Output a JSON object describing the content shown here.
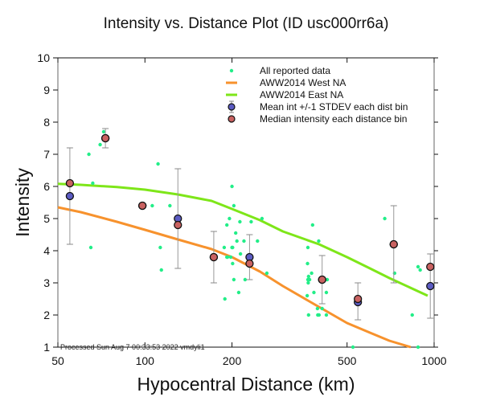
{
  "chart_data": {
    "type": "scatter",
    "title": "Intensity vs. Distance Plot (ID usc000rr6a)",
    "xlabel": "Hypocentral Distance (km)",
    "ylabel": "Intensity",
    "xscale": "log",
    "xlim": [
      50,
      1000
    ],
    "ylim": [
      1,
      10
    ],
    "xticks": [
      50,
      100,
      200,
      500,
      1000
    ],
    "xtick_labels": [
      "50",
      "100",
      "200",
      "500",
      "1000"
    ],
    "yticks": [
      1,
      2,
      3,
      4,
      5,
      6,
      7,
      8,
      9,
      10
    ],
    "ytick_labels": [
      "1",
      "2",
      "3",
      "4",
      "5",
      "6",
      "7",
      "8",
      "9",
      "10"
    ],
    "grid": false,
    "legend_position": "top-right",
    "annotation": "Processed Sun Aug  7 00:33:53 2022 vmdyli1",
    "legend": [
      {
        "label": "All reported data",
        "kind": "dot",
        "color": "#22ee88"
      },
      {
        "label": "AWW2014 West NA",
        "kind": "line",
        "color": "#f7922d"
      },
      {
        "label": "AWW2014 East NA",
        "kind": "line",
        "color": "#7ee619"
      },
      {
        "label": "Mean int +/-1 STDEV each dist bin",
        "kind": "circle-errbar",
        "color": "#5b5bc2"
      },
      {
        "label": "Median intensity each distance bin",
        "kind": "circle",
        "color": "#c96261"
      }
    ],
    "series": [
      {
        "name": "All reported data",
        "color": "#22ee88",
        "points": [
          [
            64,
            7.0
          ],
          [
            70,
            7.3
          ],
          [
            72,
            7.7
          ],
          [
            66,
            6.1
          ],
          [
            65,
            4.1
          ],
          [
            111,
            6.7
          ],
          [
            106,
            5.4
          ],
          [
            122,
            5.4
          ],
          [
            113,
            4.1
          ],
          [
            114,
            3.4
          ],
          [
            200,
            6.0
          ],
          [
            203,
            5.4
          ],
          [
            196,
            5.0
          ],
          [
            192,
            4.8
          ],
          [
            213,
            4.9
          ],
          [
            206,
            4.55
          ],
          [
            208,
            4.3
          ],
          [
            220,
            4.3
          ],
          [
            188,
            4.1
          ],
          [
            200,
            4.1
          ],
          [
            201,
            4.1
          ],
          [
            214,
            3.9
          ],
          [
            192,
            3.8
          ],
          [
            193,
            3.8
          ],
          [
            198,
            3.8
          ],
          [
            201,
            3.6
          ],
          [
            203,
            3.1
          ],
          [
            222,
            3.1
          ],
          [
            211,
            2.7
          ],
          [
            189,
            2.5
          ],
          [
            233,
            4.9
          ],
          [
            245,
            4.3
          ],
          [
            254,
            5.0
          ],
          [
            264,
            3.3
          ],
          [
            380,
            4.8
          ],
          [
            399,
            4.3
          ],
          [
            366,
            4.1
          ],
          [
            365,
            3.6
          ],
          [
            377,
            3.3
          ],
          [
            368,
            3.2
          ],
          [
            366,
            3.1
          ],
          [
            371,
            3.1
          ],
          [
            367,
            3.0
          ],
          [
            408,
            3.1
          ],
          [
            427,
            3.1
          ],
          [
            384,
            2.7
          ],
          [
            364,
            2.6
          ],
          [
            424,
            2.7
          ],
          [
            395,
            2.2
          ],
          [
            410,
            2.2
          ],
          [
            396,
            2.0
          ],
          [
            400,
            2.0
          ],
          [
            368,
            2.0
          ],
          [
            424,
            2.0
          ],
          [
            524,
            1.0
          ],
          [
            675,
            5.0
          ],
          [
            730,
            3.3
          ],
          [
            880,
            3.5
          ],
          [
            895,
            3.4
          ],
          [
            840,
            2.0
          ],
          [
            880,
            1.0
          ]
        ]
      },
      {
        "name": "AWW2014 West NA",
        "color": "#f7922d",
        "points": [
          [
            50,
            5.35
          ],
          [
            60,
            5.2
          ],
          [
            80,
            4.9
          ],
          [
            100,
            4.65
          ],
          [
            130,
            4.35
          ],
          [
            170,
            4.05
          ],
          [
            200,
            3.8
          ],
          [
            250,
            3.35
          ],
          [
            300,
            2.9
          ],
          [
            400,
            2.25
          ],
          [
            500,
            1.75
          ],
          [
            600,
            1.45
          ],
          [
            700,
            1.2
          ],
          [
            830,
            1.0
          ]
        ]
      },
      {
        "name": "AWW2014 East NA",
        "color": "#7ee619",
        "points": [
          [
            50,
            6.08
          ],
          [
            60,
            6.05
          ],
          [
            80,
            5.98
          ],
          [
            100,
            5.9
          ],
          [
            130,
            5.75
          ],
          [
            170,
            5.55
          ],
          [
            200,
            5.3
          ],
          [
            250,
            4.95
          ],
          [
            300,
            4.6
          ],
          [
            400,
            4.2
          ],
          [
            500,
            3.8
          ],
          [
            600,
            3.45
          ],
          [
            700,
            3.15
          ],
          [
            950,
            2.6
          ]
        ]
      }
    ],
    "bins": [
      {
        "distance": 55,
        "mean": 5.7,
        "median": 6.1,
        "stdev_low": 4.2,
        "stdev_high": 7.2
      },
      {
        "distance": 73,
        "mean": 7.5,
        "median": 7.5,
        "stdev_low": 7.2,
        "stdev_high": 7.8
      },
      {
        "distance": 98,
        "mean": 5.4,
        "median": 5.4,
        "stdev_low": 5.4,
        "stdev_high": 5.4
      },
      {
        "distance": 130,
        "mean": 5.0,
        "median": 4.8,
        "stdev_low": 3.45,
        "stdev_high": 6.55
      },
      {
        "distance": 173,
        "mean": 3.8,
        "median": 3.8,
        "stdev_low": 3.0,
        "stdev_high": 4.6
      },
      {
        "distance": 230,
        "mean": 3.8,
        "median": 3.6,
        "stdev_low": 3.1,
        "stdev_high": 4.5
      },
      {
        "distance": 410,
        "mean": 3.1,
        "median": 3.1,
        "stdev_low": 2.35,
        "stdev_high": 3.85
      },
      {
        "distance": 545,
        "mean": 2.4,
        "median": 2.5,
        "stdev_low": 1.85,
        "stdev_high": 3.0
      },
      {
        "distance": 725,
        "mean": 4.2,
        "median": 4.2,
        "stdev_low": 3.0,
        "stdev_high": 5.4
      },
      {
        "distance": 970,
        "mean": 2.9,
        "median": 3.5,
        "stdev_low": 1.9,
        "stdev_high": 3.9
      }
    ]
  }
}
